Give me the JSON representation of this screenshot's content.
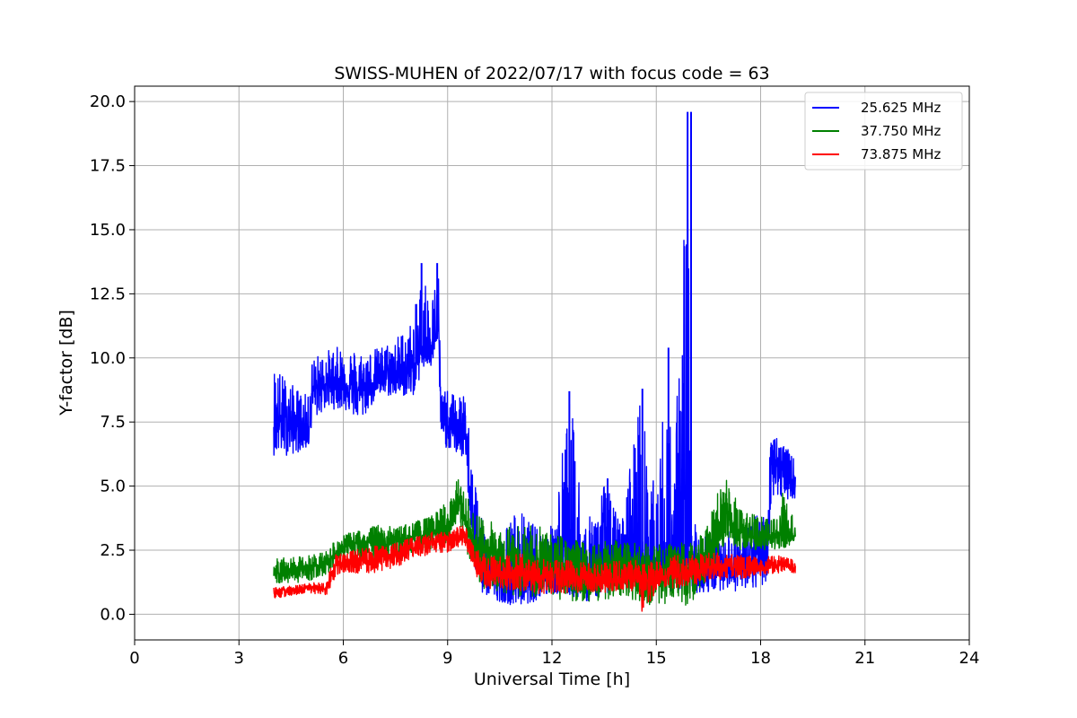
{
  "chart_data": {
    "type": "line",
    "title": "SWISS-MUHEN of 2022/07/17 with focus code = 63",
    "xlabel": "Universal Time [h]",
    "ylabel": "Y-factor [dB]",
    "xlim": [
      0,
      24
    ],
    "ylim": [
      -1.0,
      20.6
    ],
    "xticks": [
      0,
      3,
      6,
      9,
      12,
      15,
      18,
      21,
      24
    ],
    "xtick_labels": [
      "0",
      "3",
      "6",
      "9",
      "12",
      "15",
      "18",
      "21",
      "24"
    ],
    "yticks": [
      0.0,
      2.5,
      5.0,
      7.5,
      10.0,
      12.5,
      15.0,
      17.5,
      20.0
    ],
    "ytick_labels": [
      "0.0",
      "2.5",
      "5.0",
      "7.5",
      "10.0",
      "12.5",
      "15.0",
      "17.5",
      "20.0"
    ],
    "grid": true,
    "legend_position": "top-right",
    "series": [
      {
        "name": "25.625 MHz",
        "color": "#0000ff",
        "x": [
          4.0,
          4.5,
          5.0,
          5.1,
          5.5,
          6.0,
          6.5,
          7.0,
          7.5,
          8.0,
          8.3,
          8.5,
          8.75,
          8.8,
          9.0,
          9.5,
          9.8,
          10.0,
          10.5,
          11.0,
          11.5,
          12.0,
          12.5,
          13.0,
          13.5,
          14.0,
          14.5,
          15.0,
          15.3,
          15.5,
          15.85,
          15.9,
          16.0,
          16.2,
          16.5,
          17.0,
          17.5,
          18.0,
          18.2,
          18.3,
          18.5,
          19.0
        ],
        "y_low": [
          6.2,
          6.2,
          6.5,
          7.5,
          8.0,
          8.0,
          7.5,
          8.5,
          8.5,
          8.5,
          9.5,
          9.5,
          10.0,
          6.5,
          6.5,
          6.0,
          1.5,
          0.8,
          0.5,
          0.3,
          0.5,
          0.8,
          0.7,
          0.5,
          0.8,
          1.0,
          1.0,
          1.0,
          1.0,
          0.8,
          1.0,
          1.0,
          1.0,
          0.8,
          0.8,
          1.0,
          0.8,
          1.0,
          1.2,
          4.5,
          4.5,
          4.5
        ],
        "y_mid": [
          7.5,
          7.5,
          7.0,
          8.7,
          9.0,
          9.0,
          8.7,
          9.2,
          9.3,
          9.5,
          10.5,
          10.7,
          11.0,
          7.5,
          7.3,
          7.0,
          2.5,
          1.5,
          1.3,
          1.2,
          1.2,
          1.5,
          1.5,
          1.3,
          1.8,
          2.0,
          1.8,
          1.8,
          1.8,
          1.8,
          2.0,
          2.0,
          2.0,
          1.8,
          1.8,
          1.8,
          1.8,
          2.5,
          2.5,
          6.0,
          5.8,
          5.0
        ],
        "y_high": [
          9.8,
          9.0,
          8.5,
          10.0,
          10.3,
          10.5,
          10.3,
          10.4,
          10.8,
          11.5,
          13.7,
          12.0,
          13.7,
          8.8,
          8.7,
          8.5,
          5.5,
          3.5,
          3.0,
          4.2,
          3.5,
          3.5,
          8.7,
          3.5,
          5.3,
          3.5,
          8.8,
          4.5,
          10.4,
          4.5,
          19.6,
          19.6,
          3.5,
          3.5,
          3.5,
          3.5,
          3.5,
          4.0,
          4.0,
          7.6,
          7.0,
          6.0
        ],
        "spikes": [
          [
            8.25,
            13.7
          ],
          [
            8.7,
            13.7
          ],
          [
            12.5,
            8.7
          ],
          [
            13.6,
            5.3
          ],
          [
            14.6,
            8.8
          ],
          [
            15.35,
            10.4
          ],
          [
            15.9,
            19.6
          ],
          [
            16.0,
            19.6
          ]
        ]
      },
      {
        "name": "37.750 MHz",
        "color": "#008000",
        "x": [
          4.0,
          4.5,
          5.0,
          5.5,
          5.8,
          6.0,
          6.5,
          7.0,
          7.5,
          8.0,
          8.5,
          9.0,
          9.3,
          9.6,
          10.0,
          10.5,
          11.0,
          11.5,
          12.0,
          12.5,
          13.0,
          13.5,
          14.0,
          14.5,
          15.0,
          15.5,
          16.0,
          16.5,
          16.8,
          17.0,
          17.3,
          17.6,
          18.0,
          18.5,
          18.7,
          19.0
        ],
        "y_low": [
          1.2,
          1.2,
          1.3,
          1.5,
          2.0,
          2.0,
          2.0,
          2.0,
          2.0,
          2.3,
          2.5,
          2.8,
          3.5,
          2.0,
          1.0,
          0.8,
          0.7,
          0.6,
          0.6,
          0.5,
          0.5,
          0.5,
          0.7,
          0.5,
          0.3,
          0.3,
          0.3,
          1.5,
          2.0,
          3.0,
          2.5,
          2.5,
          2.5,
          2.5,
          2.5,
          2.7
        ],
        "y_mid": [
          1.6,
          1.7,
          1.8,
          2.0,
          2.4,
          2.6,
          2.8,
          2.8,
          2.9,
          3.0,
          3.1,
          3.3,
          4.5,
          3.0,
          2.5,
          2.2,
          2.0,
          1.8,
          1.8,
          1.8,
          1.7,
          1.7,
          1.7,
          1.6,
          1.6,
          1.6,
          1.8,
          2.5,
          3.5,
          4.0,
          3.2,
          3.0,
          3.0,
          3.0,
          3.2,
          3.0
        ],
        "y_high": [
          2.2,
          2.2,
          2.3,
          2.5,
          2.9,
          3.1,
          3.3,
          3.5,
          3.4,
          3.6,
          3.8,
          4.5,
          5.3,
          4.5,
          3.8,
          3.5,
          3.5,
          3.5,
          3.2,
          3.0,
          2.8,
          3.0,
          2.8,
          2.8,
          2.7,
          2.8,
          2.8,
          3.5,
          5.0,
          5.4,
          4.5,
          4.0,
          3.8,
          3.8,
          5.6,
          3.3
        ]
      },
      {
        "name": "73.875 MHz",
        "color": "#ff0000",
        "x": [
          4.0,
          4.5,
          5.0,
          5.5,
          5.8,
          6.0,
          6.5,
          7.0,
          7.5,
          8.0,
          8.5,
          9.0,
          9.5,
          9.8,
          10.0,
          10.5,
          11.0,
          11.5,
          12.0,
          12.5,
          13.0,
          13.5,
          14.0,
          14.5,
          14.6,
          15.0,
          15.5,
          16.0,
          16.5,
          17.0,
          17.5,
          18.0,
          18.5,
          19.0
        ],
        "y_low": [
          0.6,
          0.7,
          0.8,
          0.7,
          1.5,
          1.6,
          1.6,
          1.6,
          1.8,
          2.2,
          2.3,
          2.4,
          2.7,
          1.5,
          1.0,
          1.0,
          0.9,
          0.8,
          0.8,
          0.8,
          0.9,
          0.8,
          0.9,
          0.8,
          0.0,
          0.9,
          1.0,
          1.1,
          1.3,
          1.4,
          1.4,
          1.5,
          1.6,
          1.6
        ],
        "y_mid": [
          0.8,
          0.9,
          1.0,
          1.0,
          1.9,
          2.0,
          2.1,
          2.2,
          2.3,
          2.6,
          2.8,
          2.9,
          3.0,
          2.0,
          1.7,
          1.6,
          1.6,
          1.5,
          1.4,
          1.4,
          1.4,
          1.4,
          1.4,
          1.4,
          1.3,
          1.4,
          1.6,
          1.7,
          1.8,
          1.9,
          1.8,
          1.8,
          1.9,
          1.8
        ],
        "y_high": [
          1.1,
          1.1,
          1.2,
          1.3,
          2.4,
          2.4,
          2.6,
          2.7,
          2.8,
          3.0,
          3.2,
          3.3,
          3.5,
          2.6,
          2.4,
          2.3,
          2.4,
          2.2,
          2.1,
          2.1,
          2.0,
          2.1,
          2.1,
          2.1,
          2.0,
          2.1,
          2.3,
          2.3,
          2.4,
          2.4,
          2.3,
          2.2,
          2.3,
          2.1
        ]
      }
    ]
  }
}
